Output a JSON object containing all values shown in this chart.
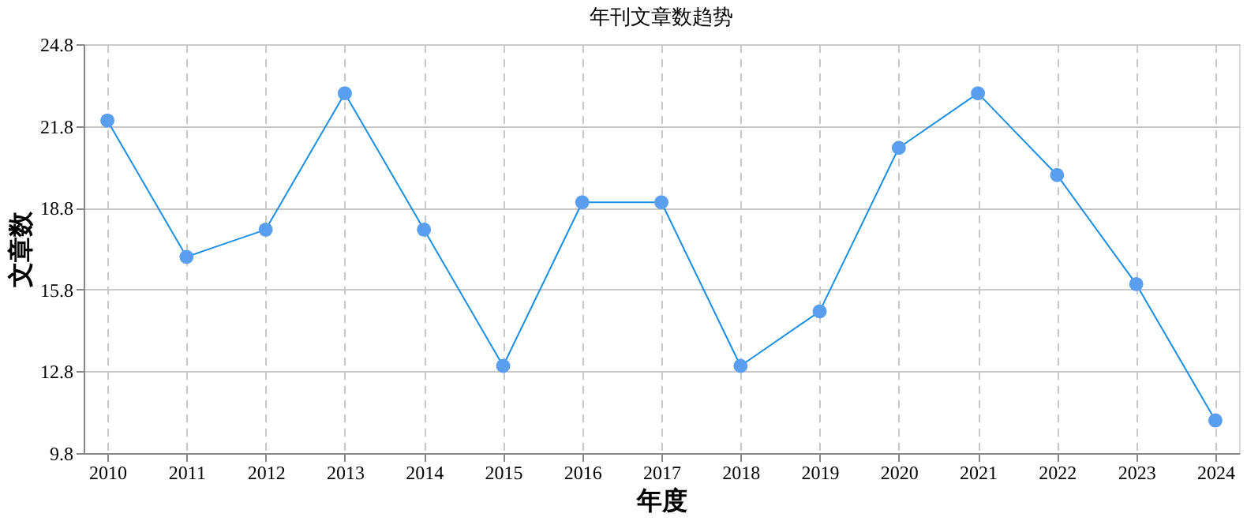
{
  "chart_data": {
    "type": "line",
    "title": "年刊文章数趋势",
    "xlabel": "年度",
    "ylabel": "文章数",
    "categories": [
      "2010",
      "2011",
      "2012",
      "2013",
      "2014",
      "2015",
      "2016",
      "2017",
      "2018",
      "2019",
      "2020",
      "2021",
      "2022",
      "2023",
      "2024"
    ],
    "series": [
      {
        "color": "#1a8fe3",
        "values": [
          22,
          17,
          18,
          23,
          18,
          13,
          19,
          19,
          13,
          15,
          21,
          23,
          20,
          16,
          11
        ]
      }
    ],
    "ylim": [
      9.8,
      24.8
    ],
    "yticks": [
      9.8,
      12.8,
      15.8,
      18.8,
      21.8,
      24.8
    ],
    "grid": true,
    "marker": "circle",
    "line_style": "solid"
  }
}
